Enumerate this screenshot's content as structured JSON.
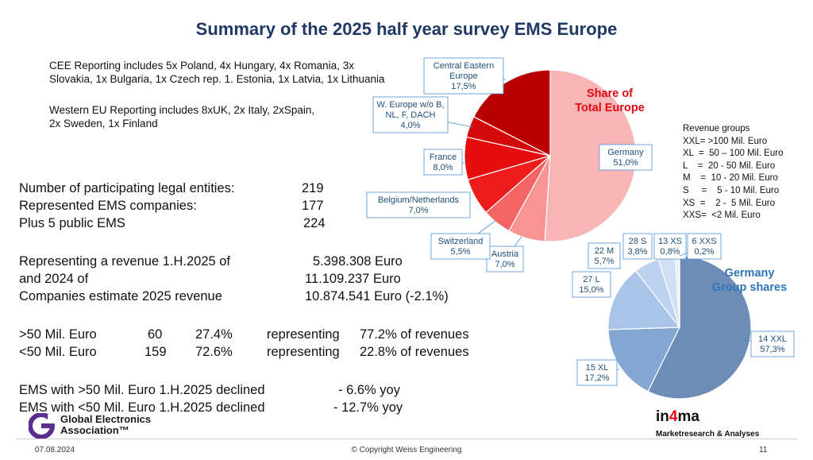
{
  "title": "Summary of the 2025 half year survey EMS Europe",
  "notes": {
    "cee": [
      "CEE Reporting includes 5x Poland, 4x Hungary, 4x Romania, 3x",
      "Slovakia, 1x Bulgaria, 1x Czech rep. 1. Estonia, 1x Latvia, 1x Lithuania"
    ],
    "western": [
      "Western EU Reporting includes 8xUK, 2x Italy, 2xSpain,",
      "2x Sweden, 1x Finland"
    ]
  },
  "stats": {
    "participants": [
      {
        "label": "Number of participating legal entities:",
        "value": "219"
      },
      {
        "label": "Represented EMS companies:",
        "value": "177"
      },
      {
        "label": "Plus 5 public EMS",
        "value": "224"
      }
    ],
    "revenue": [
      {
        "label": "Representing a revenue 1.H.2025 of",
        "value": "5.398.308 Euro"
      },
      {
        "label": "and 2024 of",
        "value": "11.109.237 Euro"
      },
      {
        "label": "Companies estimate 2025 revenue",
        "value": "10.874.541 Euro  (-2.1%)"
      }
    ],
    "groups": [
      {
        "label": ">50 Mil. Euro",
        "count": "60",
        "pct": "27.4%",
        "rep": "representing",
        "share": "77.2% of revenues"
      },
      {
        "label": "<50 Mil. Euro",
        "count": "159",
        "pct": "72.6%",
        "rep": "representing",
        "share": "22.8% of revenues"
      }
    ],
    "decline": [
      {
        "label": "EMS with >50 Mil. Euro 1.H.2025 declined",
        "value": "- 6.6% yoy"
      },
      {
        "label": "EMS with <50 Mil. Euro 1.H.2025 declined",
        "value": "- 12.7% yoy"
      }
    ]
  },
  "revenue_groups": {
    "title": "Revenue groups",
    "lines": [
      "XXL= >100 Mil. Euro",
      "XL  =  50 – 100 Mil. Euro",
      "L    =  20 - 50 Mil. Euro",
      "M    =  10 - 20 Mil. Euro",
      "S     =    5 - 10 Mil. Euro",
      "XS  =    2 -  5 Mil. Euro",
      "XXS=  <2 Mil. Euro"
    ]
  },
  "chart_data": [
    {
      "type": "pie",
      "title": "Share of Total Europe",
      "title_color": "#e30613",
      "slices": [
        {
          "label": "Germany",
          "value": 51.0,
          "value_label": "51,0%",
          "color": "#f8b5b5"
        },
        {
          "label": "Austria",
          "value": 7.0,
          "value_label": "7,0%",
          "color": "#f89494"
        },
        {
          "label": "Switzerland",
          "value": 5.5,
          "value_label": "5,5%",
          "color": "#f56565"
        },
        {
          "label": "Belgium/Netherlands",
          "value": 7.0,
          "value_label": "7,0%",
          "color": "#ef1c1c"
        },
        {
          "label": "France",
          "value": 8.0,
          "value_label": "8,0%",
          "color": "#e50d0d"
        },
        {
          "label": "W. Europe w/o B, NL, F, DACH",
          "value": 4.0,
          "value_label": "4,0%",
          "color": "#d40a0a"
        },
        {
          "label": "Central Eastern Europe",
          "value": 17.5,
          "value_label": "17,5%",
          "color": "#b80000"
        }
      ]
    },
    {
      "type": "pie",
      "title": "Germany Group shares",
      "title_color": "#2e75b6",
      "slices": [
        {
          "label": "14 XXL",
          "value": 57.3,
          "value_label": "57,3%",
          "color": "#6d8cb8"
        },
        {
          "label": "15 XL",
          "value": 17.2,
          "value_label": "17,2%",
          "color": "#86a6d4"
        },
        {
          "label": "27 L",
          "value": 15.0,
          "value_label": "15,0%",
          "color": "#a9c4e8"
        },
        {
          "label": "22 M",
          "value": 5.7,
          "value_label": "5,7%",
          "color": "#bcd3f0"
        },
        {
          "label": "28 S",
          "value": 3.8,
          "value_label": "3,8%",
          "color": "#cfe0f5"
        },
        {
          "label": "13 XS",
          "value": 0.8,
          "value_label": "0,8%",
          "color": "#dfeaf8"
        },
        {
          "label": "6 XXS",
          "value": 0.2,
          "value_label": "0,2%",
          "color": "#ebf2fb"
        }
      ]
    }
  ],
  "footer": {
    "date": "07.08.2024",
    "copyright": "© Copyright Weiss Engineering",
    "page": "11"
  },
  "logos": {
    "gea_line1": "Global Electronics",
    "gea_line2": "Association™",
    "in4ma_prefix": "in",
    "in4ma_accent": "4",
    "in4ma_suffix": "ma",
    "in4ma_sub": "Marketresearch & Analyses"
  }
}
